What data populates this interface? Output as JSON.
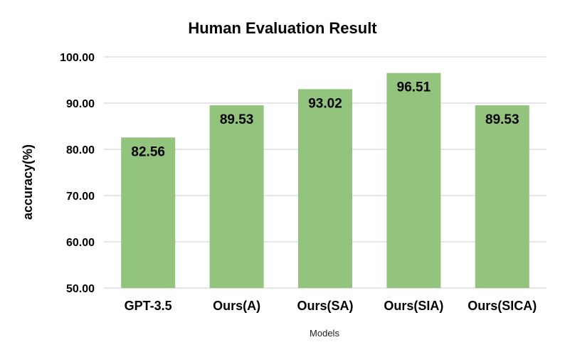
{
  "chart_data": {
    "type": "bar",
    "title": "Human Evaluation Result",
    "xlabel": "Models",
    "ylabel": "accuracy(%)",
    "categories": [
      "GPT-3.5",
      "Ours(A)",
      "Ours(SA)",
      "Ours(SIA)",
      "Ours(SICA)"
    ],
    "values": [
      82.56,
      89.53,
      93.02,
      96.51,
      89.53
    ],
    "value_labels": [
      "82.56",
      "89.53",
      "93.02",
      "96.51",
      "89.53"
    ],
    "ylim": [
      50,
      100
    ],
    "yticks": [
      50,
      60,
      70,
      80,
      90,
      100
    ],
    "ytick_labels": [
      "50.00",
      "60.00",
      "70.00",
      "80.00",
      "90.00",
      "100.00"
    ],
    "grid": true,
    "legend": "none",
    "colors": {
      "bar": "#93c47d",
      "grid": "#cccccc",
      "text": "#000000"
    }
  }
}
